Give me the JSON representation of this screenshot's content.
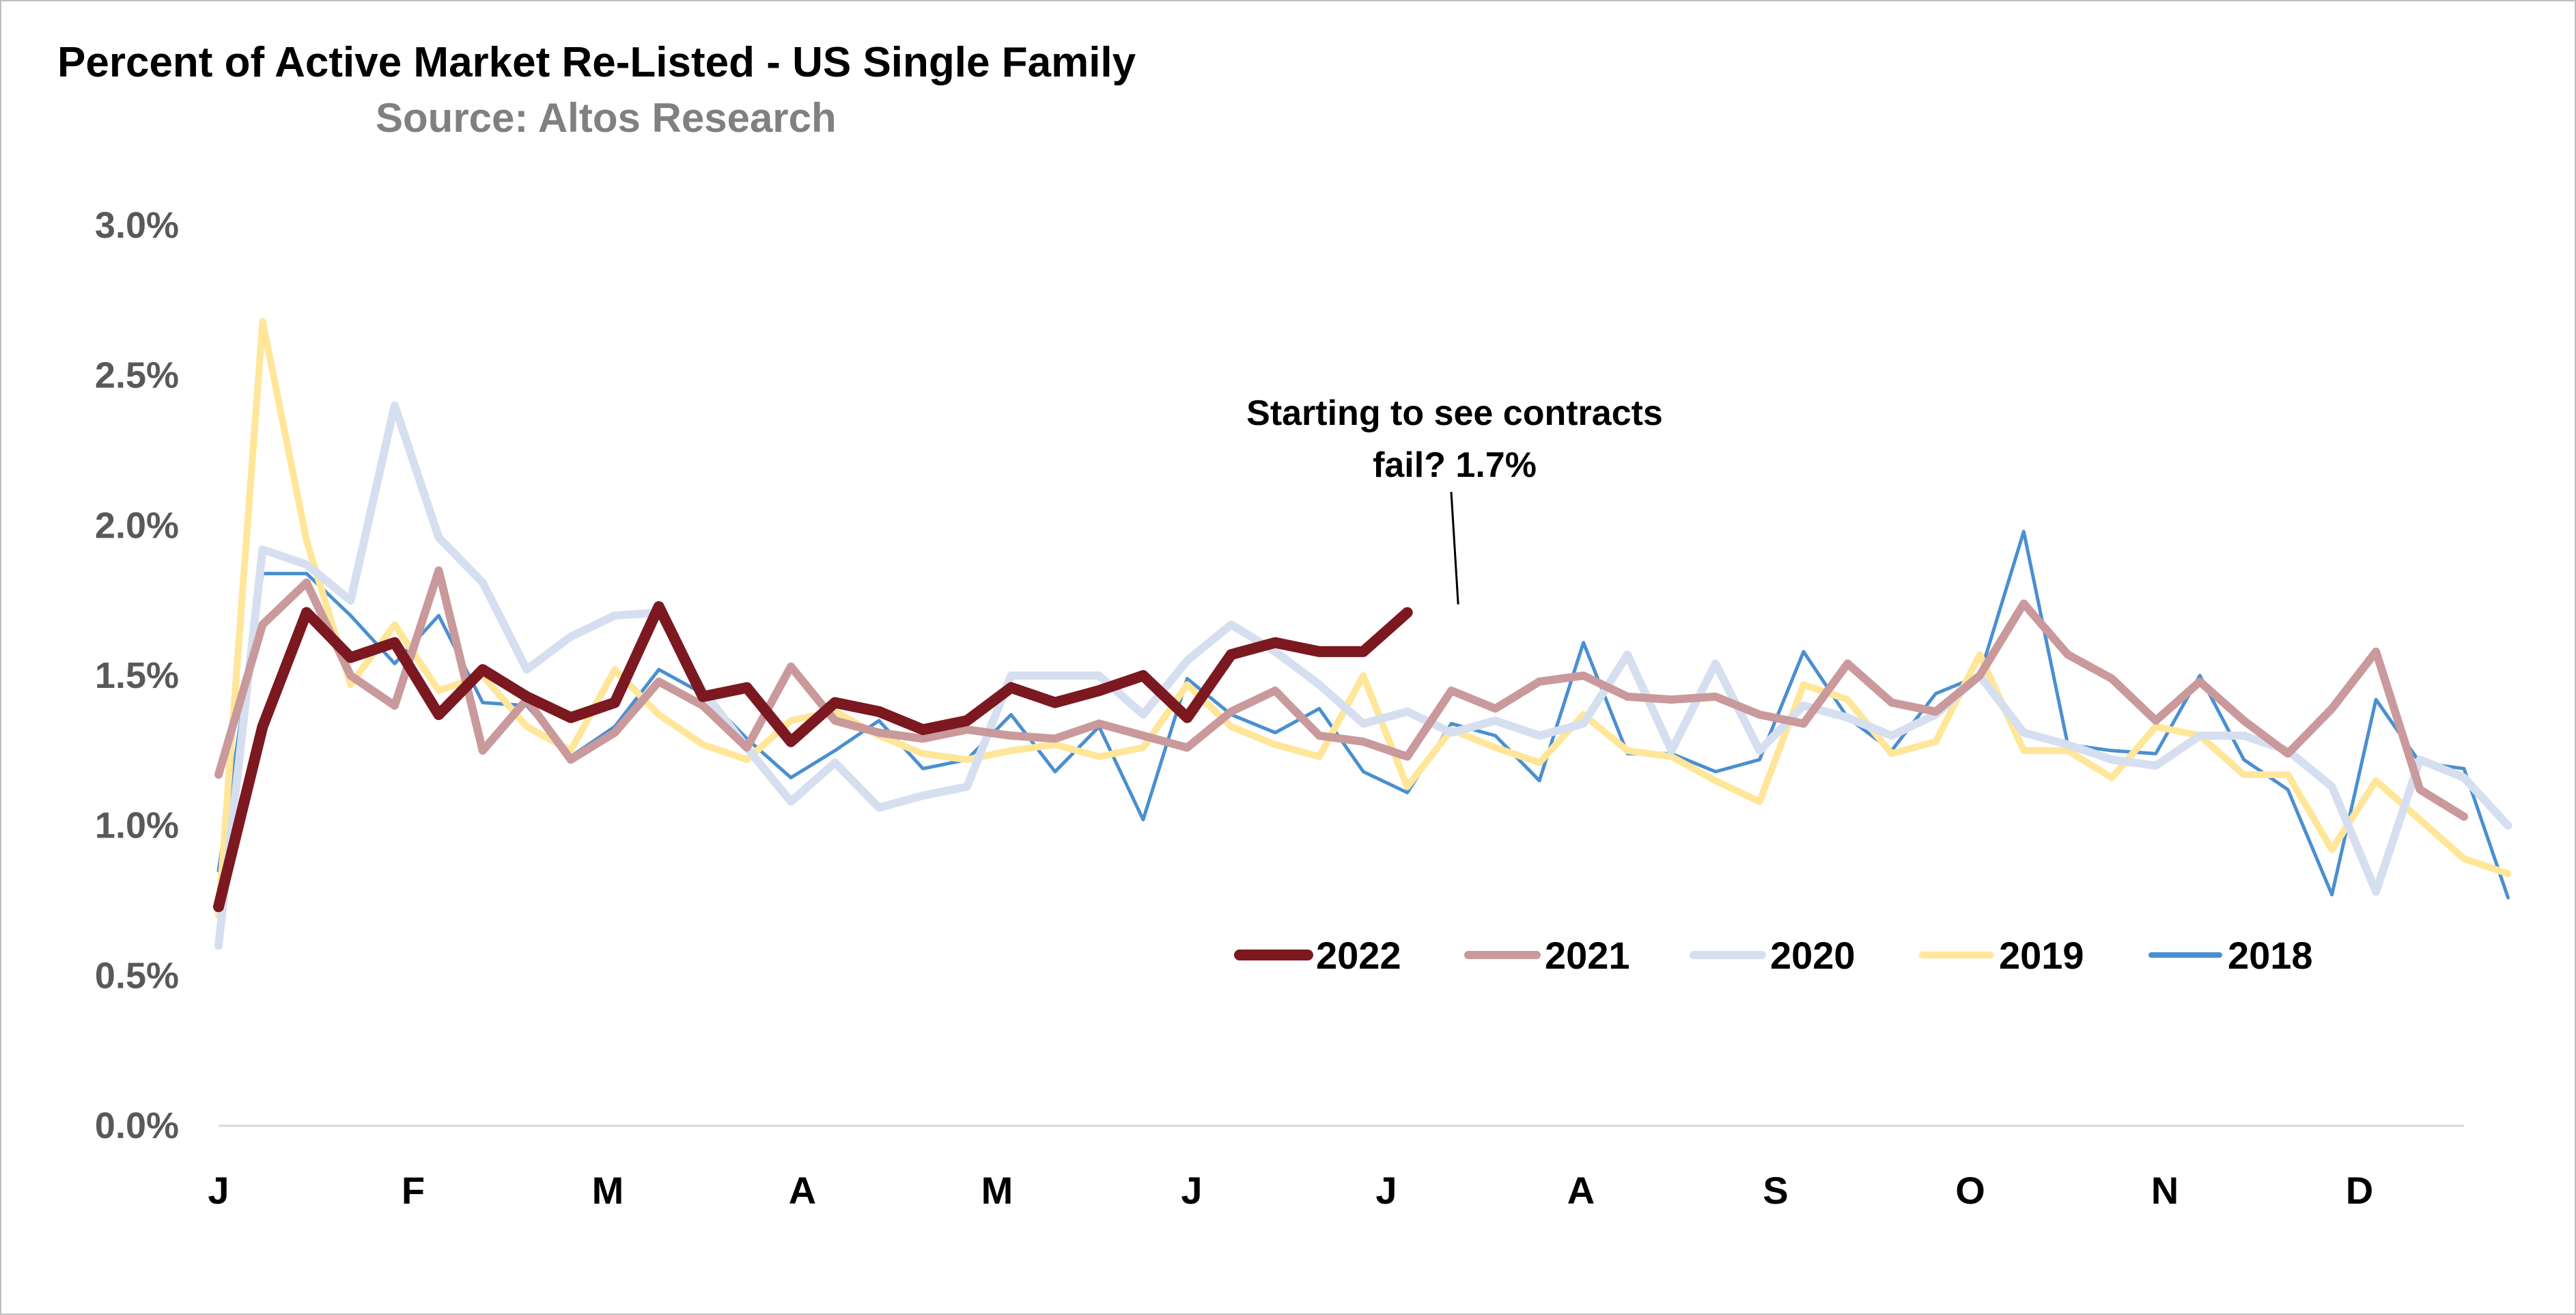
{
  "chart_data": {
    "type": "line",
    "title": "Percent of Active Market Re-Listed - US Single Family",
    "subtitle": "Source: Altos Research",
    "xlabel": "",
    "ylabel": "",
    "ylim": [
      0,
      0.03
    ],
    "y_ticks": [
      "0.0%",
      "0.5%",
      "1.0%",
      "1.5%",
      "2.0%",
      "2.5%",
      "3.0%"
    ],
    "x_ticks": [
      "J",
      "F",
      "M",
      "A",
      "M",
      "J",
      "J",
      "A",
      "S",
      "O",
      "N",
      "D"
    ],
    "x_unit": "week of year",
    "x_range": [
      1,
      52
    ],
    "grid": false,
    "legend_position": "bottom-right",
    "annotation": {
      "text_line1": "Starting to see contracts",
      "text_line2": "fail? 1.7%",
      "week": 29,
      "value": 0.0171
    },
    "series": [
      {
        "name": "2018",
        "color": "#4a8fd0",
        "width": 5,
        "values": [
          0.0085,
          0.0184,
          0.0184,
          0.017,
          0.0154,
          0.017,
          0.0141,
          0.014,
          0.0123,
          0.0133,
          0.0152,
          0.0144,
          0.0129,
          0.0116,
          0.0125,
          0.0135,
          0.0119,
          0.0122,
          0.0137,
          0.0118,
          0.0133,
          0.0102,
          0.0149,
          0.0137,
          0.0131,
          0.0139,
          0.0118,
          0.0111,
          0.0134,
          0.013,
          0.0115,
          0.0161,
          0.0124,
          0.0124,
          0.0118,
          0.0122,
          0.0158,
          0.0136,
          0.0125,
          0.0144,
          0.015,
          0.0198,
          0.0127,
          0.0125,
          0.0124,
          0.015,
          0.0122,
          0.0112,
          0.0077,
          0.0142,
          0.0121,
          0.0119,
          0.0076
        ]
      },
      {
        "name": "2019",
        "color": "#ffe699",
        "width": 10,
        "values": [
          0.007,
          0.0268,
          0.0195,
          0.0147,
          0.0167,
          0.0145,
          0.015,
          0.0133,
          0.0125,
          0.0152,
          0.0137,
          0.0127,
          0.0122,
          0.0135,
          0.0138,
          0.013,
          0.0124,
          0.0122,
          0.0125,
          0.0127,
          0.0123,
          0.0126,
          0.0147,
          0.0133,
          0.0127,
          0.0123,
          0.015,
          0.0113,
          0.0132,
          0.0126,
          0.0121,
          0.0137,
          0.0125,
          0.0123,
          0.0115,
          0.0108,
          0.0147,
          0.0142,
          0.0124,
          0.0128,
          0.0157,
          0.0125,
          0.0125,
          0.0116,
          0.0133,
          0.013,
          0.0117,
          0.0117,
          0.0092,
          0.0115,
          0.0102,
          0.0089,
          0.0084
        ]
      },
      {
        "name": "2020",
        "color": "#d6dff0",
        "width": 12,
        "values": [
          0.006,
          0.0192,
          0.0187,
          0.0175,
          0.024,
          0.0196,
          0.0181,
          0.0152,
          0.0163,
          0.017,
          0.0171,
          0.0145,
          0.0126,
          0.0108,
          0.0121,
          0.0106,
          0.011,
          0.0113,
          0.015,
          0.015,
          0.015,
          0.0137,
          0.0155,
          0.0167,
          0.0158,
          0.0147,
          0.0134,
          0.0138,
          0.0131,
          0.0135,
          0.013,
          0.0134,
          0.0157,
          0.0125,
          0.0154,
          0.0125,
          0.014,
          0.0136,
          0.013,
          0.0137,
          0.015,
          0.0131,
          0.0127,
          0.0122,
          0.012,
          0.013,
          0.013,
          0.0125,
          0.0113,
          0.0078,
          0.0122,
          0.0116,
          0.01
        ]
      },
      {
        "name": "2021",
        "color": "#c9999c",
        "width": 12,
        "values": [
          0.0117,
          0.0167,
          0.0181,
          0.015,
          0.014,
          0.0185,
          0.0125,
          0.0142,
          0.0122,
          0.0131,
          0.0148,
          0.014,
          0.0126,
          0.0153,
          0.0135,
          0.0131,
          0.0129,
          0.0132,
          0.013,
          0.0129,
          0.0134,
          0.013,
          0.0126,
          0.0138,
          0.0145,
          0.013,
          0.0128,
          0.0123,
          0.0145,
          0.0139,
          0.0148,
          0.015,
          0.0143,
          0.0142,
          0.0143,
          0.0137,
          0.0134,
          0.0154,
          0.0141,
          0.0138,
          0.015,
          0.0174,
          0.0157,
          0.0149,
          0.0135,
          0.0148,
          0.0135,
          0.0124,
          0.0139,
          0.0158,
          0.0112,
          0.0103
        ]
      },
      {
        "name": "2022",
        "color": "#7b1820",
        "width": 16,
        "values": [
          0.0073,
          0.0133,
          0.0171,
          0.0156,
          0.0161,
          0.0137,
          0.0152,
          0.0143,
          0.0136,
          0.0141,
          0.0173,
          0.0143,
          0.0146,
          0.0128,
          0.0141,
          0.0138,
          0.0132,
          0.0135,
          0.0146,
          0.0141,
          0.0145,
          0.015,
          0.0136,
          0.0157,
          0.0161,
          0.0158,
          0.0158,
          0.0171
        ]
      }
    ]
  }
}
